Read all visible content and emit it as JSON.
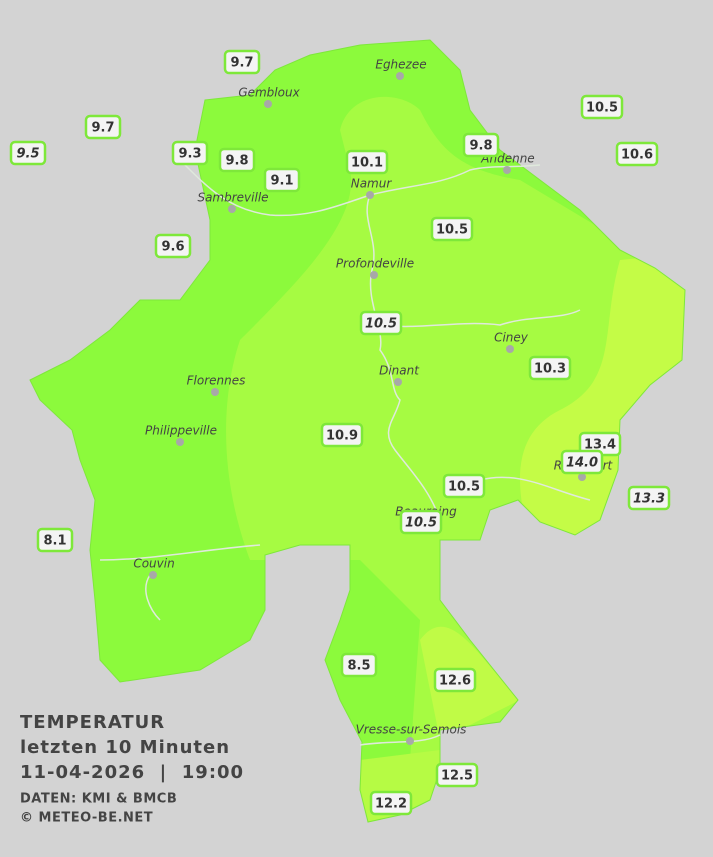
{
  "title": {
    "heading": "TEMPERATUR",
    "period": "letzten 10 Minuten",
    "datetime": "11-04-2026  |  19:00",
    "source": "DATEN: KMI & BMCB",
    "copyright": "© METEO-BE.NET"
  },
  "cities": [
    {
      "name": "Eghezee"
    },
    {
      "name": "Gembloux"
    },
    {
      "name": "Andenne"
    },
    {
      "name": "Namur"
    },
    {
      "name": "Sambreville"
    },
    {
      "name": "Profondeville"
    },
    {
      "name": "Ciney"
    },
    {
      "name": "Dinant"
    },
    {
      "name": "Florennes"
    },
    {
      "name": "Philippeville"
    },
    {
      "name": "Couvin"
    },
    {
      "name": "Vresse-sur-Semois"
    },
    {
      "name": "Beauraing"
    },
    {
      "name": "Rochefort"
    }
  ],
  "stations": [
    {
      "value": "9.7",
      "italic": false
    },
    {
      "value": "9.7",
      "italic": false
    },
    {
      "value": "9.5",
      "italic": true
    },
    {
      "value": "9.3",
      "italic": false
    },
    {
      "value": "9.8",
      "italic": false
    },
    {
      "value": "9.1",
      "italic": false
    },
    {
      "value": "9.6",
      "italic": false
    },
    {
      "value": "10.1",
      "italic": false
    },
    {
      "value": "9.8",
      "italic": false
    },
    {
      "value": "10.5",
      "italic": false
    },
    {
      "value": "10.6",
      "italic": false
    },
    {
      "value": "10.5",
      "italic": false
    },
    {
      "value": "10.5",
      "italic": true
    },
    {
      "value": "10.3",
      "italic": false
    },
    {
      "value": "10.9",
      "italic": false
    },
    {
      "value": "13.4",
      "italic": false
    },
    {
      "value": "14.0",
      "italic": true
    },
    {
      "value": "13.3",
      "italic": true
    },
    {
      "value": "10.5",
      "italic": false
    },
    {
      "value": "10.5",
      "italic": true
    },
    {
      "value": "8.1",
      "italic": false
    },
    {
      "value": "8.5",
      "italic": false
    },
    {
      "value": "12.6",
      "italic": false
    },
    {
      "value": "12.5",
      "italic": false
    },
    {
      "value": "12.2",
      "italic": false
    }
  ]
}
